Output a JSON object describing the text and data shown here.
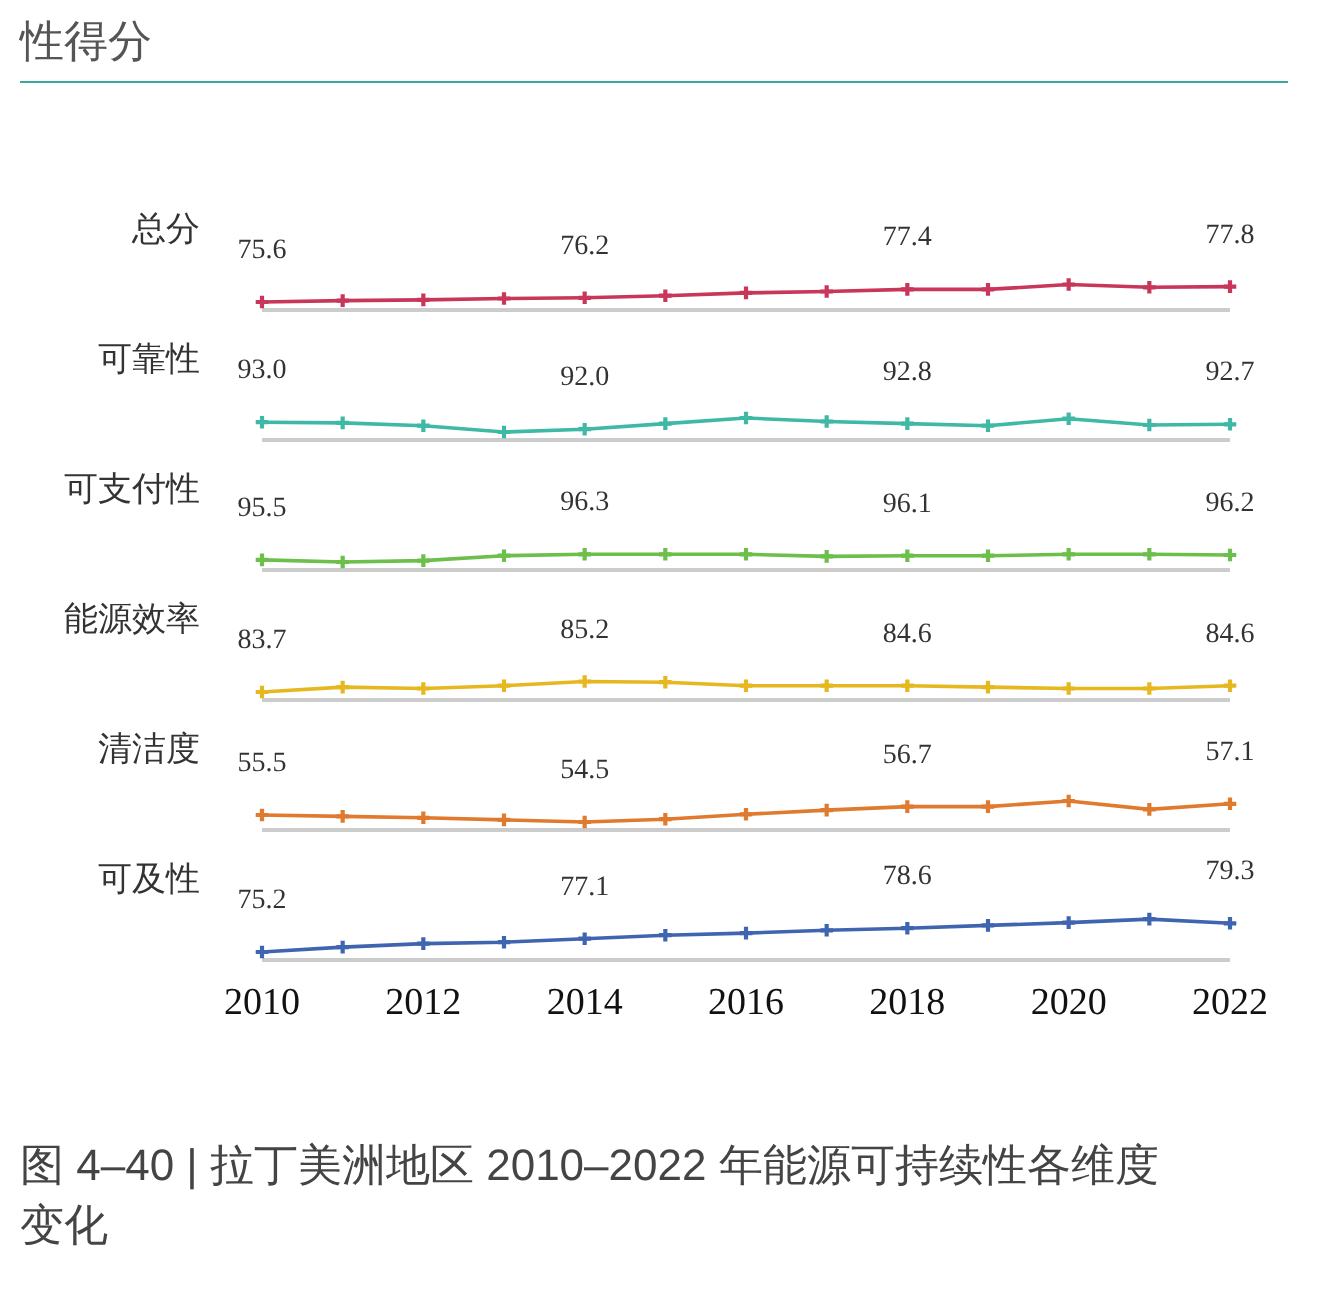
{
  "chart_data": [
    {
      "type": "line",
      "ylabel": "总分",
      "annotations": [
        "性得分"
      ],
      "x": [
        2010,
        2011,
        2012,
        2013,
        2014,
        2015,
        2016,
        2017,
        2018,
        2019,
        2020,
        2021,
        2022
      ],
      "series": [
        {
          "color": "#c8375a",
          "values": [
            75.6,
            75.8,
            75.9,
            76.1,
            76.2,
            76.5,
            76.9,
            77.1,
            77.4,
            77.4,
            78.1,
            77.7,
            77.8
          ],
          "value_labels": [
            "75.6",
            null,
            null,
            null,
            "76.2",
            null,
            null,
            null,
            "77.4",
            null,
            null,
            null,
            "77.8"
          ]
        }
      ],
      "xlim": [
        2010,
        2022
      ],
      "xticks": [
        2010,
        2012,
        2014,
        2016,
        2018,
        2020,
        2022
      ],
      "tick_labels": false,
      "marker": "cross"
    },
    {
      "type": "line",
      "ylabel": "可靠性",
      "x": [
        2010,
        2011,
        2012,
        2013,
        2014,
        2015,
        2016,
        2017,
        2018,
        2019,
        2020,
        2021,
        2022
      ],
      "series": [
        {
          "color": "#3fb8a6",
          "values": [
            93.0,
            92.9,
            92.5,
            91.6,
            92.0,
            92.8,
            93.6,
            93.1,
            92.8,
            92.5,
            93.5,
            92.6,
            92.7
          ],
          "value_labels": [
            "93.0",
            null,
            null,
            null,
            "92.0",
            null,
            null,
            null,
            "92.8",
            null,
            null,
            null,
            "92.7"
          ]
        }
      ],
      "xlim": [
        2010,
        2022
      ],
      "xticks": [
        2010,
        2012,
        2014,
        2016,
        2018,
        2020,
        2022
      ],
      "tick_labels": false,
      "marker": "cross"
    },
    {
      "type": "line",
      "ylabel": "可支付性",
      "x": [
        2010,
        2011,
        2012,
        2013,
        2014,
        2015,
        2016,
        2017,
        2018,
        2019,
        2020,
        2021,
        2022
      ],
      "series": [
        {
          "color": "#6bbf4a",
          "values": [
            95.5,
            95.2,
            95.4,
            96.1,
            96.3,
            96.3,
            96.3,
            96.0,
            96.1,
            96.1,
            96.3,
            96.3,
            96.2
          ],
          "value_labels": [
            "95.5",
            null,
            null,
            null,
            "96.3",
            null,
            null,
            null,
            "96.1",
            null,
            null,
            null,
            "96.2"
          ]
        }
      ],
      "xlim": [
        2010,
        2022
      ],
      "xticks": [
        2010,
        2012,
        2014,
        2016,
        2018,
        2020,
        2022
      ],
      "tick_labels": false,
      "marker": "cross"
    },
    {
      "type": "line",
      "ylabel": "能源效率",
      "x": [
        2010,
        2011,
        2012,
        2013,
        2014,
        2015,
        2016,
        2017,
        2018,
        2019,
        2020,
        2021,
        2022
      ],
      "series": [
        {
          "color": "#e6b820",
          "values": [
            83.7,
            84.4,
            84.2,
            84.6,
            85.2,
            85.1,
            84.6,
            84.6,
            84.6,
            84.4,
            84.2,
            84.2,
            84.6
          ],
          "value_labels": [
            "83.7",
            null,
            null,
            null,
            "85.2",
            null,
            null,
            null,
            "84.6",
            null,
            null,
            null,
            "84.6"
          ]
        }
      ],
      "xlim": [
        2010,
        2022
      ],
      "xticks": [
        2010,
        2012,
        2014,
        2016,
        2018,
        2020,
        2022
      ],
      "tick_labels": false,
      "marker": "cross"
    },
    {
      "type": "line",
      "ylabel": "清洁度",
      "x": [
        2010,
        2011,
        2012,
        2013,
        2014,
        2015,
        2016,
        2017,
        2018,
        2019,
        2020,
        2021,
        2022
      ],
      "series": [
        {
          "color": "#e07a2e",
          "values": [
            55.5,
            55.3,
            55.1,
            54.8,
            54.5,
            54.9,
            55.6,
            56.2,
            56.7,
            56.7,
            57.5,
            56.3,
            57.1
          ],
          "value_labels": [
            "55.5",
            null,
            null,
            null,
            "54.5",
            null,
            null,
            null,
            "56.7",
            null,
            null,
            null,
            "57.1"
          ]
        }
      ],
      "xlim": [
        2010,
        2022
      ],
      "xticks": [
        2010,
        2012,
        2014,
        2016,
        2018,
        2020,
        2022
      ],
      "tick_labels": false,
      "marker": "cross"
    },
    {
      "type": "line",
      "ylabel": "可及性",
      "annotations": [
        "图 4–40 | 拉丁美洲地区 2010–2022 年能源可持续性各维度变化"
      ],
      "x": [
        2010,
        2011,
        2012,
        2013,
        2014,
        2015,
        2016,
        2017,
        2018,
        2019,
        2020,
        2021,
        2022
      ],
      "series": [
        {
          "color": "#4065b0",
          "values": [
            75.2,
            75.9,
            76.4,
            76.6,
            77.1,
            77.6,
            77.9,
            78.3,
            78.6,
            79.0,
            79.4,
            79.9,
            79.3
          ],
          "value_labels": [
            "75.2",
            null,
            null,
            null,
            "77.1",
            null,
            null,
            null,
            "78.6",
            null,
            null,
            null,
            "79.3"
          ]
        }
      ],
      "xlim": [
        2010,
        2022
      ],
      "xticks": [
        2010,
        2012,
        2014,
        2016,
        2018,
        2020,
        2022
      ],
      "tick_labels": "x",
      "marker": "cross"
    }
  ]
}
